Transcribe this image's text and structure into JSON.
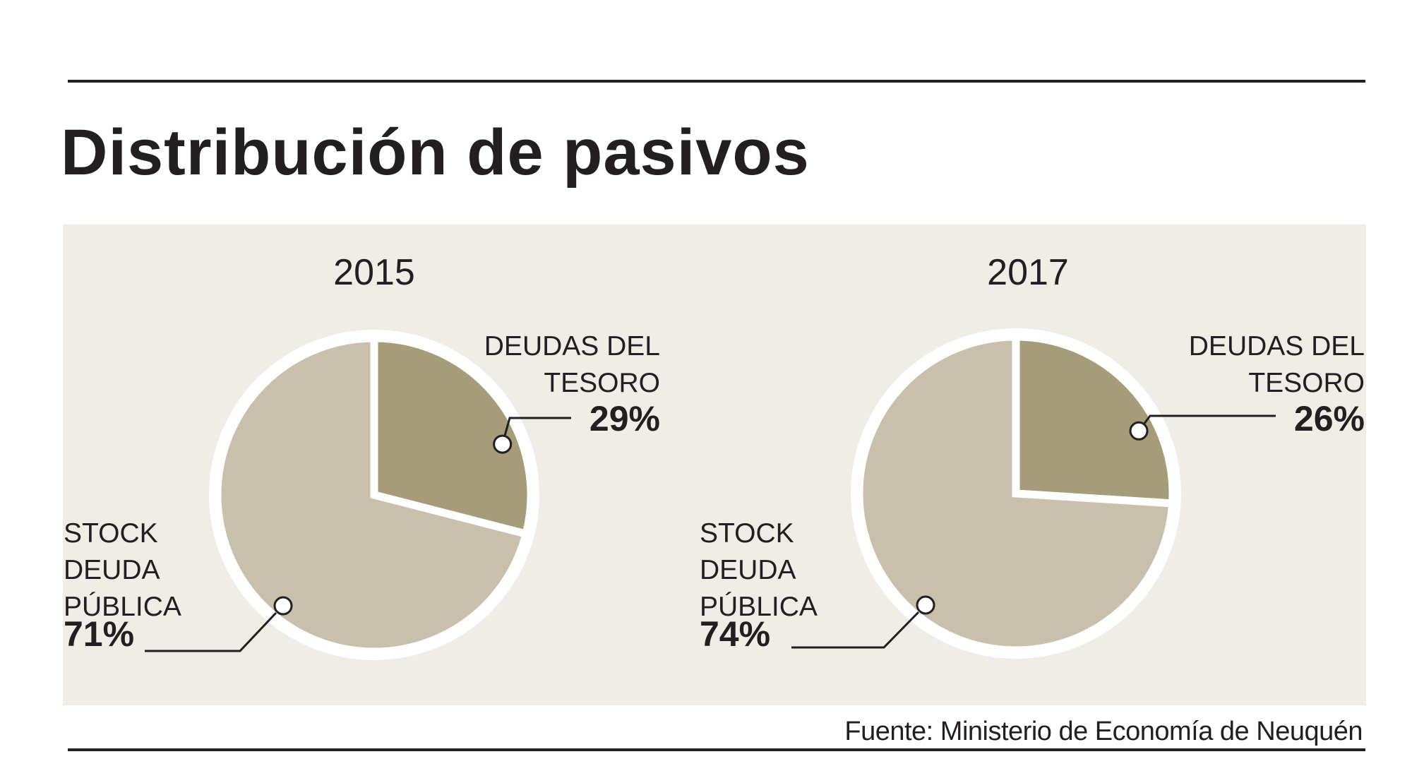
{
  "title": "Distribución de pasivos",
  "source": "Fuente: Ministerio de Economía de Neuquén",
  "colors": {
    "background_panel": "#f0ede6",
    "deudas_tesoro": "#a59d7a",
    "stock_deuda_publica": "#c8c0aa",
    "separator": "#ffffff",
    "text": "#231f20"
  },
  "chart_data": [
    {
      "type": "pie",
      "title": "2015",
      "slices": [
        {
          "label": [
            "DEUDAS DEL",
            "TESORO"
          ],
          "value": 29,
          "display": "29%"
        },
        {
          "label": [
            "STOCK",
            "DEUDA",
            "PÚBLICA"
          ],
          "value": 71,
          "display": "71%"
        }
      ]
    },
    {
      "type": "pie",
      "title": "2017",
      "slices": [
        {
          "label": [
            "DEUDAS DEL",
            "TESORO"
          ],
          "value": 26,
          "display": "26%"
        },
        {
          "label": [
            "STOCK",
            "DEUDA",
            "PÚBLICA"
          ],
          "value": 74,
          "display": "74%"
        }
      ]
    }
  ]
}
